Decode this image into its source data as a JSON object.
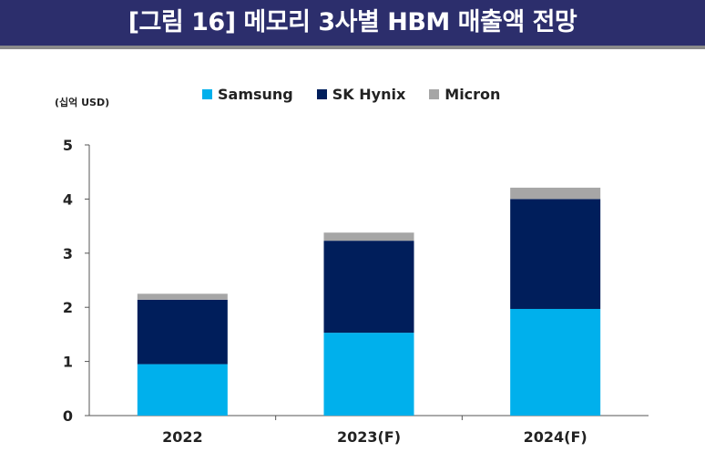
{
  "header": {
    "title": "[그림 16] 메모리 3사별 HBM 매출액 전망"
  },
  "chart_data": {
    "type": "bar",
    "stacked": true,
    "title": "[그림 16] 메모리 3사별 HBM 매출액 전망",
    "ylabel": "(십억 USD)",
    "xlabel": "",
    "categories": [
      "2022",
      "2023(F)",
      "2024(F)"
    ],
    "ylim": [
      0,
      5
    ],
    "yticks": [
      "0",
      "1",
      "2",
      "3",
      "4",
      "5"
    ],
    "grid": false,
    "legend": "top",
    "series": [
      {
        "name": "Samsung",
        "color": "#00b0ec",
        "values": [
          0.95,
          1.53,
          1.97
        ]
      },
      {
        "name": "SK Hynix",
        "color": "#001e5b",
        "values": [
          1.19,
          1.7,
          2.03
        ]
      },
      {
        "name": "Micron",
        "color": "#a6a6a6",
        "values": [
          0.11,
          0.15,
          0.21
        ]
      }
    ]
  }
}
